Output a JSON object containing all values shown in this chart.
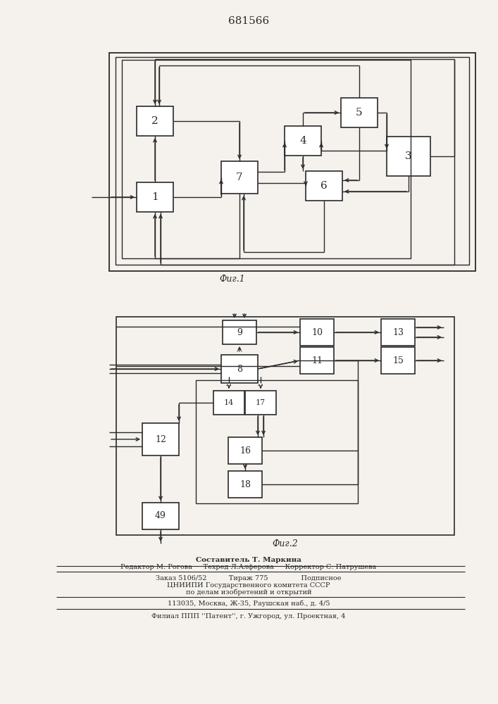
{
  "title": "681566",
  "fig1_label": "Фиг.1",
  "fig2_label": "Фиг.2",
  "bg_color": "#f5f2ed",
  "lc": "#2a2a2a",
  "tc": "#2a2a2a",
  "footer": [
    "Составитель Т. Маркина",
    "Редактор М. Рогова     Техред Л.Алферова     Корректор С. Патрушева",
    "Заказ 5106/52          Тираж 775               Подписное",
    "ЦНИИПИ Государственного комитета СССР",
    "по делам изобретений и открытий",
    "113035, Москва, Ж-35, Раушская наб., д. 4/5",
    "Филиал ППП ''Патент'', г. Ужгород, ул. Проектная, 4"
  ]
}
